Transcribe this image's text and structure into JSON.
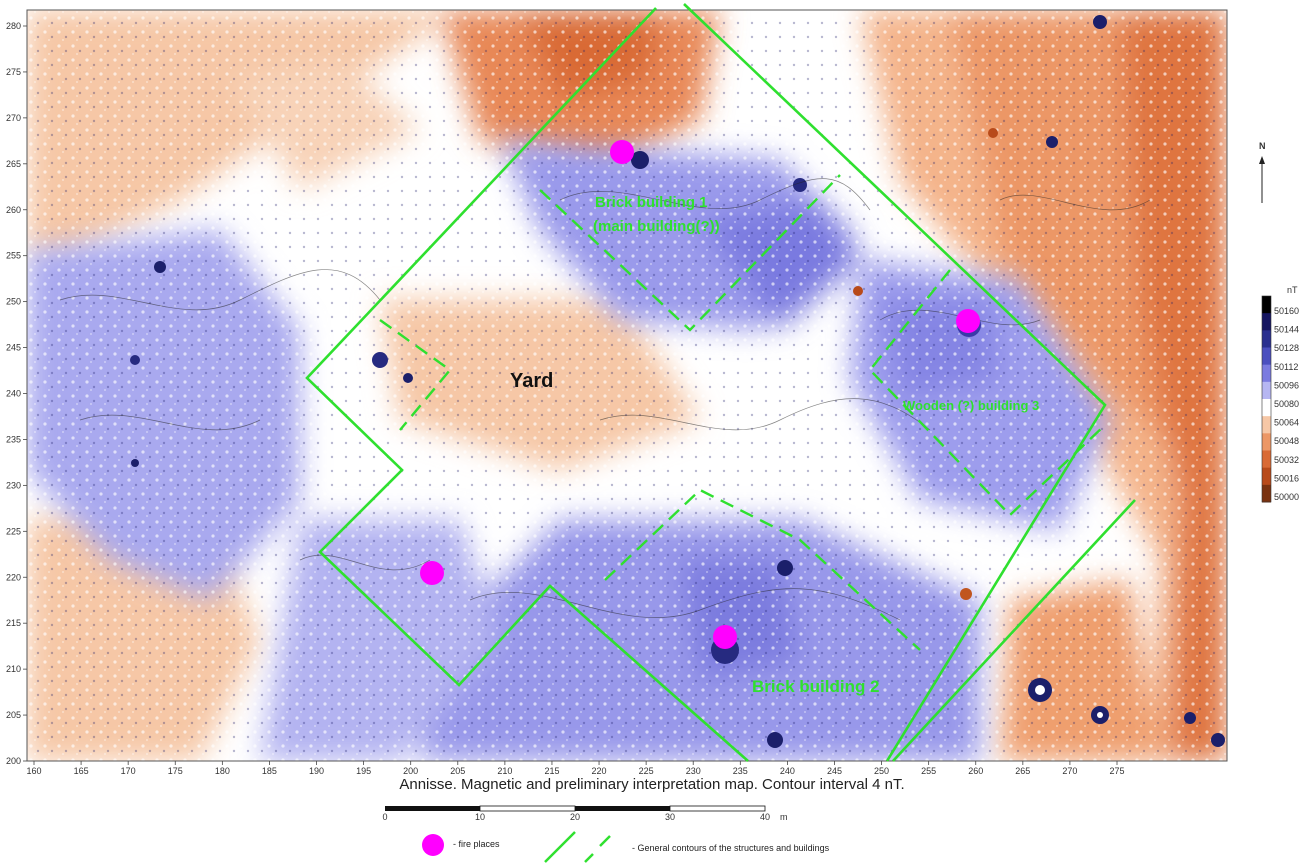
{
  "map": {
    "x_ticks": [
      "160",
      "165",
      "170",
      "175",
      "180",
      "185",
      "190",
      "195",
      "200",
      "205",
      "210",
      "215",
      "220",
      "225",
      "230",
      "235",
      "240",
      "245",
      "250",
      "255",
      "260",
      "265",
      "270",
      "275"
    ],
    "y_ticks": [
      "280",
      "275",
      "270",
      "265",
      "260",
      "255",
      "250",
      "245",
      "240",
      "235",
      "230",
      "225",
      "220",
      "215",
      "210",
      "205",
      "200"
    ],
    "labels": {
      "yard": "Yard",
      "brick1_line1": "Brick building 1",
      "brick1_line2": "(main building(?))",
      "wooden": "Wooden (?) building 3",
      "brick2": "Brick building 2"
    },
    "north": "N",
    "colors": {
      "contour_green": "#2fe02f",
      "fire_magenta": "#ff00ff",
      "high_blue": "#2a2f8f",
      "low_brown": "#b84a1a"
    }
  },
  "colorbar": {
    "unit": "nT",
    "values": [
      "50160",
      "50144",
      "50128",
      "50112",
      "50096",
      "50080",
      "50064",
      "50048",
      "50032",
      "50016",
      "50000"
    ]
  },
  "caption": "Annisse. Magnetic and preliminary interpretation map. Contour interval 4 nT.",
  "scalebar": {
    "ticks": [
      "0",
      "10",
      "20",
      "30",
      "40"
    ],
    "unit": "m"
  },
  "legend": {
    "fire_places": "- fire places",
    "contours": "- General contours of the structures and buildings"
  }
}
